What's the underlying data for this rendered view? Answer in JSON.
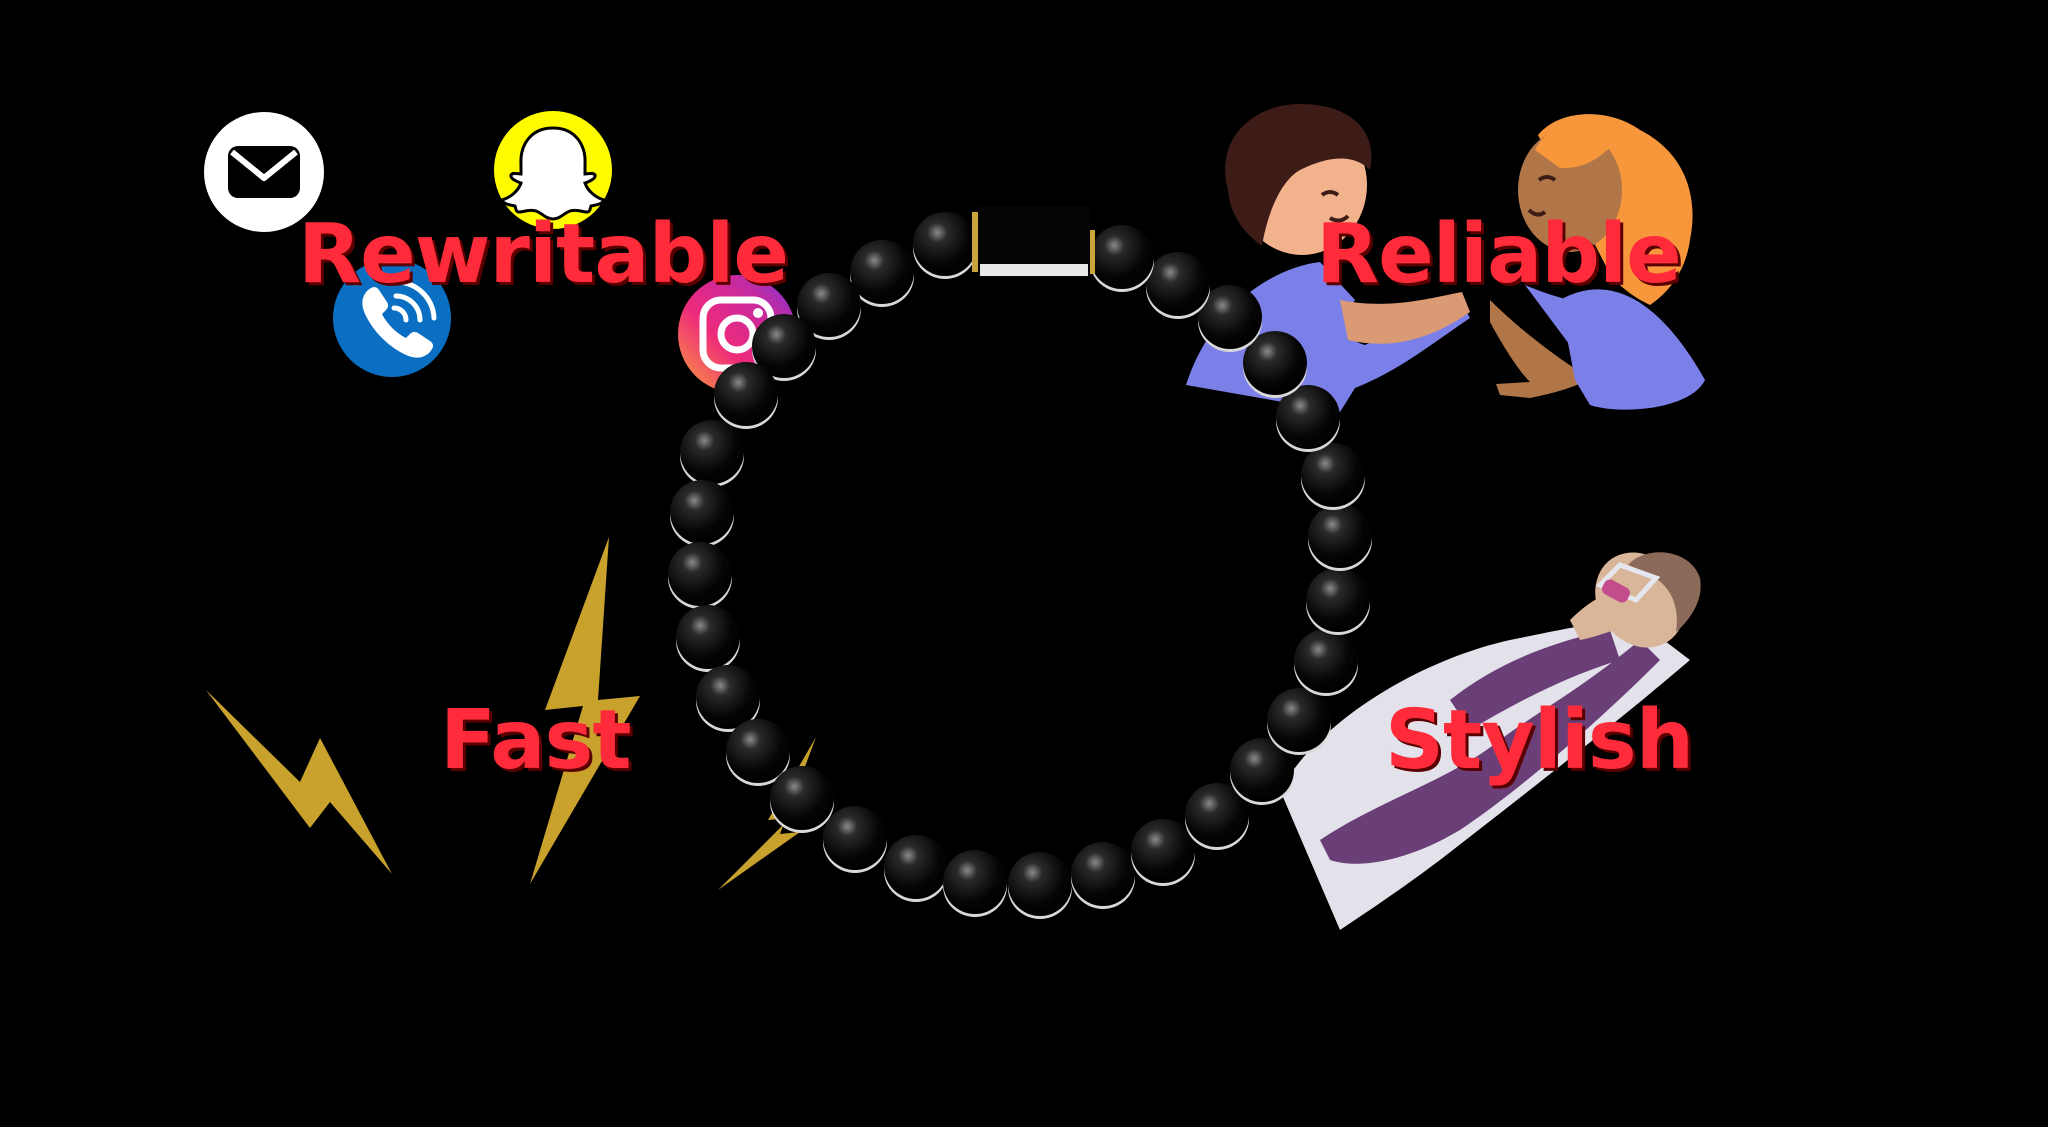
{
  "labels": {
    "rewritable": "Rewritable",
    "reliable": "Reliable",
    "fast": "Fast",
    "stylish": "Stylish"
  },
  "icons": [
    "mail-icon",
    "snapchat-icon",
    "phone-icon",
    "instagram-icon"
  ],
  "colors": {
    "background": "#000000",
    "label": "#ff2b3a",
    "bolt": "#c9a22e",
    "snapchat": "#fffc00",
    "phone": "#0a6fc2",
    "shirt": "#7b80e8"
  }
}
